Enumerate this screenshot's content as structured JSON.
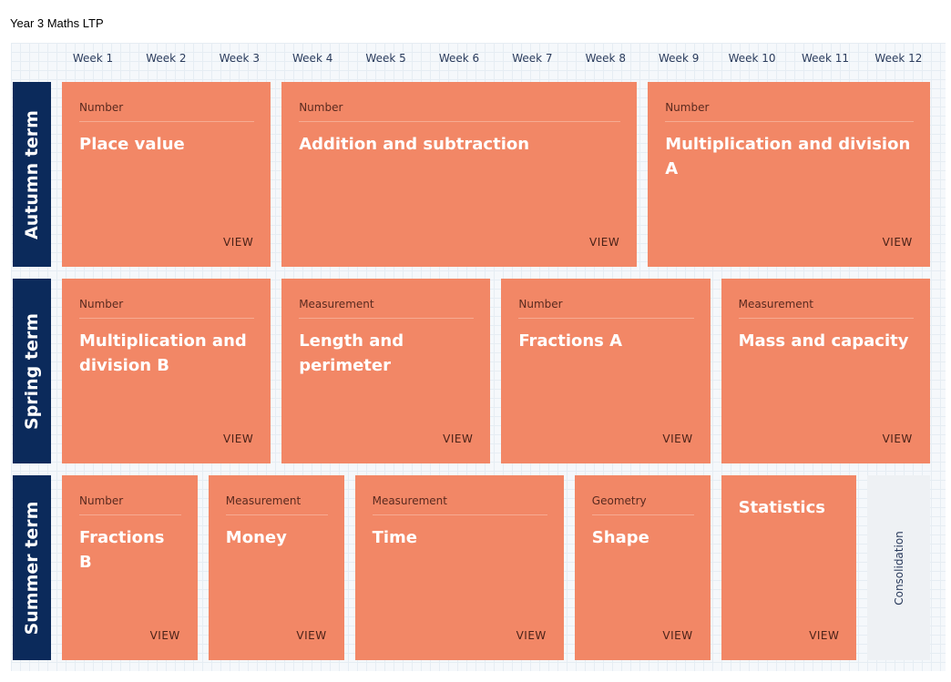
{
  "header": {
    "title": "Year 3 Maths LTP"
  },
  "weeks": [
    "Week 1",
    "Week 2",
    "Week 3",
    "Week 4",
    "Week 5",
    "Week 6",
    "Week 7",
    "Week 8",
    "Week 9",
    "Week 10",
    "Week 11",
    "Week 12"
  ],
  "terms": [
    {
      "name": "Autumn term",
      "blocks": [
        {
          "category": "Number",
          "title": "Place value",
          "action": "VIEW"
        },
        {
          "category": "Number",
          "title": "Addition and subtraction",
          "action": "VIEW"
        },
        {
          "category": "Number",
          "title": "Multiplication and division A",
          "action": "VIEW"
        }
      ]
    },
    {
      "name": "Spring term",
      "blocks": [
        {
          "category": "Number",
          "title": "Multiplication and division B",
          "action": "VIEW"
        },
        {
          "category": "Measurement",
          "title": "Length and perimeter",
          "action": "VIEW"
        },
        {
          "category": "Number",
          "title": "Fractions A",
          "action": "VIEW"
        },
        {
          "category": "Measurement",
          "title": "Mass and capacity",
          "action": "VIEW"
        }
      ]
    },
    {
      "name": "Summer term",
      "blocks": [
        {
          "category": "Number",
          "title": "Fractions B",
          "action": "VIEW"
        },
        {
          "category": "Measurement",
          "title": "Money",
          "action": "VIEW"
        },
        {
          "category": "Measurement",
          "title": "Time",
          "action": "VIEW"
        },
        {
          "category": "Geometry",
          "title": "Shape",
          "action": "VIEW"
        },
        {
          "title": "Statistics",
          "action": "VIEW"
        },
        {
          "label": "Consolidation"
        }
      ]
    }
  ]
}
